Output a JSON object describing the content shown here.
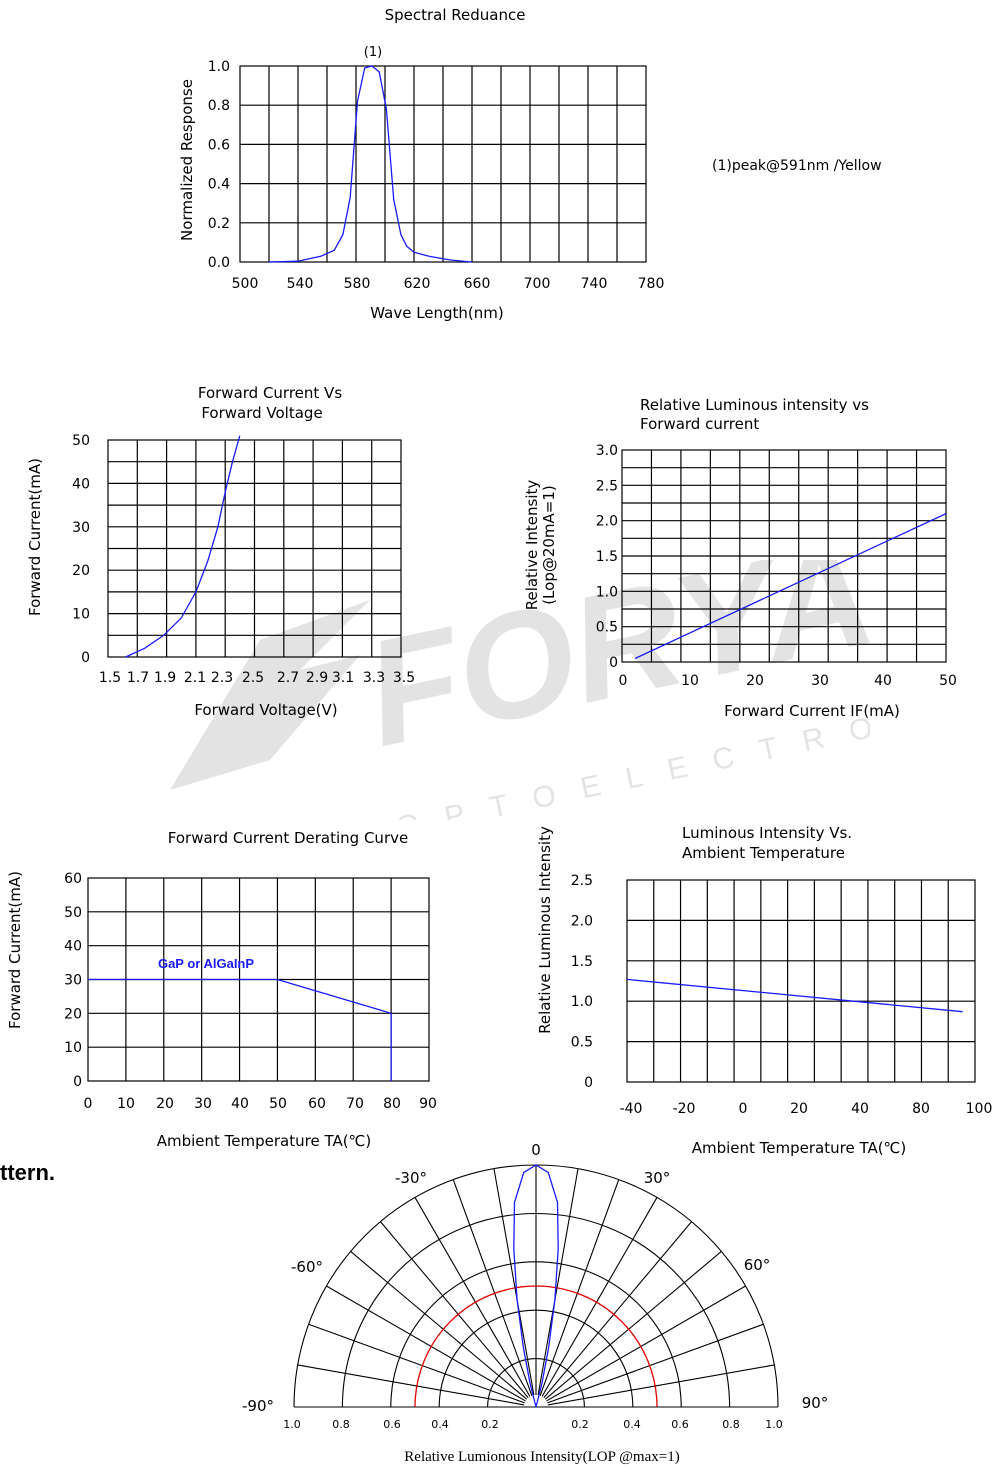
{
  "section_heading": "ttern.",
  "watermark": {
    "brand": "FORYARD",
    "sub": "OPTOELECTRONICS"
  },
  "colors": {
    "curve": "#1a1aff",
    "ring": "#e00000",
    "grid": "#000000",
    "label": "#1a1aff"
  },
  "chart_data": [
    {
      "id": "spectral",
      "type": "line",
      "title": "Spectral  Reduance",
      "xlabel": "Wave Length(nm)",
      "ylabel": "Normalized  Response",
      "xlim": [
        500,
        780
      ],
      "ylim": [
        0,
        1.0
      ],
      "x_ticks": [
        "500",
        "540",
        "580",
        "620",
        "660",
        "700",
        "740",
        "780"
      ],
      "y_ticks": [
        "0.0",
        "0.2",
        "0.4",
        "0.6",
        "0.8",
        "1.0"
      ],
      "annotation": "(1)",
      "note": "(1)peak@591nm /Yellow",
      "series": [
        {
          "x": [
            520,
            540,
            556,
            565,
            571,
            576,
            581,
            586,
            591,
            596,
            601,
            606,
            611,
            615,
            620,
            630,
            645,
            660
          ],
          "y": [
            0,
            0.004,
            0.03,
            0.06,
            0.14,
            0.33,
            0.82,
            0.99,
            1.0,
            0.97,
            0.78,
            0.32,
            0.14,
            0.08,
            0.05,
            0.03,
            0.01,
            0
          ]
        }
      ]
    },
    {
      "id": "ivcurve",
      "type": "line",
      "title": [
        "Forward Current Vs",
        "Forward Voltage"
      ],
      "xlabel": "Forward Voltage(V)",
      "ylabel": "Forward Current(mA)",
      "xlim": [
        1.5,
        3.5
      ],
      "ylim": [
        0,
        50
      ],
      "x_ticks": [
        "1.5",
        "1.7",
        "1.9",
        "2.1",
        "2.3",
        "2.5",
        "2.7",
        "2.9",
        "3.1",
        "3.3",
        "3.5"
      ],
      "y_ticks": [
        "0",
        "10",
        "20",
        "30",
        "40",
        "50"
      ],
      "series": [
        {
          "x": [
            1.62,
            1.75,
            1.88,
            2.0,
            2.1,
            2.18,
            2.25,
            2.3,
            2.35,
            2.4
          ],
          "y": [
            0,
            2,
            5,
            9,
            15,
            22,
            30,
            38,
            45,
            51
          ]
        }
      ]
    },
    {
      "id": "relint",
      "type": "line",
      "title": [
        "Relative Luminous intensity vs",
        "Forward current"
      ],
      "xlabel": "Forward Current IF(mA)",
      "ylabel": [
        "Relative Intensity",
        "(Lop@20mA=1)"
      ],
      "xlim": [
        0,
        50
      ],
      "ylim": [
        0,
        3.0
      ],
      "x_ticks": [
        "0",
        "10",
        "20",
        "30",
        "40",
        "50"
      ],
      "y_ticks": [
        "0",
        "0.5",
        "1.0",
        "1.5",
        "2.0",
        "2.5",
        "3.0"
      ],
      "series": [
        {
          "x": [
            2,
            50
          ],
          "y": [
            0.05,
            2.1
          ]
        }
      ]
    },
    {
      "id": "derating",
      "type": "line",
      "title": "Forward Current Derating Curve",
      "xlabel": "Ambient Temperature TA(℃)",
      "ylabel": "Forward Current(mA)",
      "xlim": [
        0,
        90
      ],
      "ylim": [
        0,
        60
      ],
      "x_ticks": [
        "0",
        "10",
        "20",
        "30",
        "40",
        "50",
        "60",
        "70",
        "80",
        "90"
      ],
      "y_ticks": [
        "0",
        "10",
        "20",
        "30",
        "40",
        "50",
        "60"
      ],
      "annotation": "GaP or AlGaInP",
      "series": [
        {
          "x": [
            0,
            50,
            80,
            80
          ],
          "y": [
            30,
            30,
            20,
            0
          ]
        }
      ]
    },
    {
      "id": "temp",
      "type": "line",
      "title": [
        "Luminous Intensity Vs.",
        "Ambient Temperature"
      ],
      "xlabel": "Ambient Temperature TA(℃)",
      "ylabel": "Relative Luminous Intensity",
      "xlim": [
        -40,
        100
      ],
      "ylim": [
        0,
        2.5
      ],
      "x_ticks": [
        "-40",
        "-20",
        "0",
        "20",
        "40",
        "80",
        "100"
      ],
      "y_ticks": [
        "0",
        "0.5",
        "1.0",
        "1.5",
        "2.0",
        "2.5"
      ],
      "series": [
        {
          "x": [
            -40,
            95
          ],
          "y": [
            1.27,
            0.87
          ]
        }
      ]
    },
    {
      "id": "polar",
      "type": "polar",
      "title": "Relative Lumionous Intensity(LOP @max=1)",
      "angle_labels": [
        "0",
        "-30°",
        "30°",
        "-60°",
        "60°",
        "-90°",
        "90°"
      ],
      "radial_labels_left": [
        "1.0",
        "0.8",
        "0.6",
        "0.4",
        "0.2"
      ],
      "radial_labels_right": [
        "0.2",
        "0.4",
        "0.6",
        "0.8",
        "1.0"
      ],
      "highlight_ring": 0.5,
      "series": [
        {
          "angle": [
            0,
            3,
            6,
            8,
            10,
            12,
            14,
            15
          ],
          "r": [
            1.0,
            0.97,
            0.85,
            0.66,
            0.45,
            0.25,
            0.1,
            0
          ]
        }
      ]
    }
  ]
}
